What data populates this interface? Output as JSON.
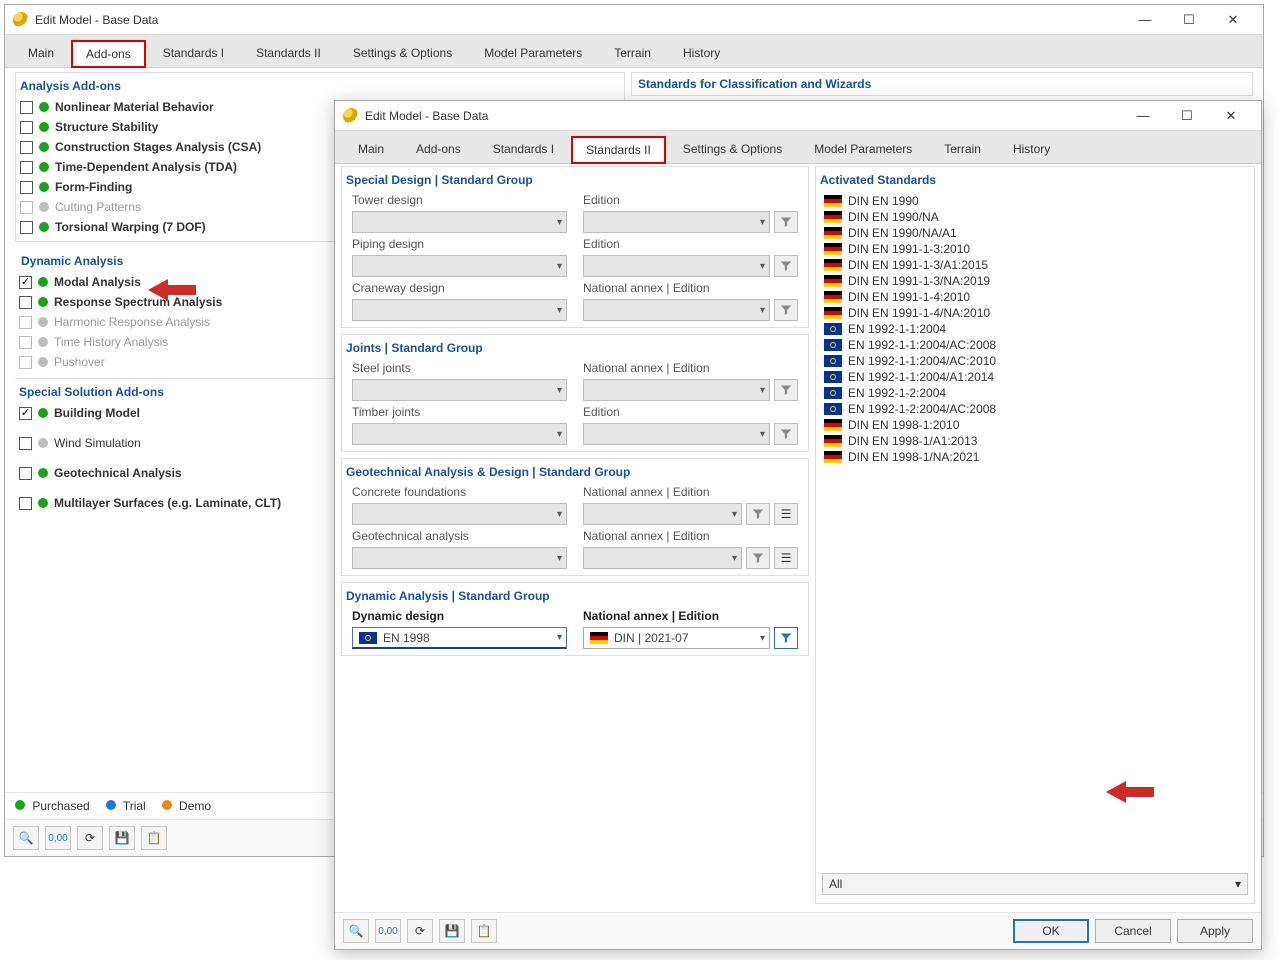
{
  "colors": {
    "purchased": "#19a319",
    "trial": "#1f77d4",
    "demo": "#e58a17",
    "disabledDot": "#bdbdbd",
    "arrow": "#cf2a2a"
  },
  "window1": {
    "title": "Edit Model - Base Data",
    "tabs": [
      "Main",
      "Add-ons",
      "Standards I",
      "Standards II",
      "Settings & Options",
      "Model Parameters",
      "Terrain",
      "History"
    ],
    "activeTab": 1,
    "sections": {
      "analysis": {
        "header": "Analysis Add-ons",
        "items": [
          {
            "checked": false,
            "dot": "purchased",
            "label": "Nonlinear Material Behavior",
            "bold": true
          },
          {
            "checked": false,
            "dot": "purchased",
            "label": "Structure Stability",
            "bold": true
          },
          {
            "checked": false,
            "dot": "purchased",
            "label": "Construction Stages Analysis (CSA)",
            "bold": true
          },
          {
            "checked": false,
            "dot": "purchased",
            "label": "Time-Dependent Analysis (TDA)",
            "bold": true
          },
          {
            "checked": false,
            "dot": "purchased",
            "label": "Form-Finding",
            "bold": true
          },
          {
            "checked": false,
            "dot": "disabled",
            "label": "Cutting Patterns",
            "bold": false,
            "disabled": true
          },
          {
            "checked": false,
            "dot": "purchased",
            "label": "Torsional Warping (7 DOF)",
            "bold": true
          }
        ]
      },
      "dynamic": {
        "header": "Dynamic Analysis",
        "items": [
          {
            "checked": true,
            "dot": "purchased",
            "label": "Modal Analysis",
            "bold": true
          },
          {
            "checked": false,
            "dot": "purchased",
            "label": "Response Spectrum Analysis",
            "bold": true
          },
          {
            "checked": false,
            "dot": "disabled",
            "label": "Harmonic Response Analysis",
            "bold": false,
            "disabled": true
          },
          {
            "checked": false,
            "dot": "disabled",
            "label": "Time History Analysis",
            "bold": false,
            "disabled": true
          },
          {
            "checked": false,
            "dot": "disabled",
            "label": "Pushover",
            "bold": false,
            "disabled": true
          }
        ]
      },
      "special": {
        "header": "Special Solution Add-ons",
        "items": [
          {
            "checked": true,
            "dot": "purchased",
            "label": "Building Model",
            "bold": true
          },
          {
            "checked": false,
            "dot": "disabled",
            "label": "Wind Simulation",
            "bold": false
          },
          {
            "checked": false,
            "dot": "purchased",
            "label": "Geotechnical Analysis",
            "bold": true
          },
          {
            "checked": false,
            "dot": "purchased",
            "label": "Multilayer Surfaces (e.g. Laminate, CLT)",
            "bold": true
          }
        ]
      }
    },
    "rightHeader": "Standards for Classification and Wizards",
    "legend": [
      {
        "dot": "purchased",
        "label": "Purchased"
      },
      {
        "dot": "trial",
        "label": "Trial"
      },
      {
        "dot": "demo",
        "label": "Demo"
      }
    ]
  },
  "window2": {
    "title": "Edit Model - Base Data",
    "tabs": [
      "Main",
      "Add-ons",
      "Standards I",
      "Standards II",
      "Settings & Options",
      "Model Parameters",
      "Terrain",
      "History"
    ],
    "activeTab": 3,
    "groups": [
      {
        "header": "Special Design | Standard Group",
        "rows": [
          {
            "l": "Tower design",
            "r": "Edition"
          },
          {
            "l": "Piping design",
            "r": "Edition"
          },
          {
            "l": "Craneway design",
            "r": "National annex | Edition"
          }
        ]
      },
      {
        "header": "Joints | Standard Group",
        "rows": [
          {
            "l": "Steel joints",
            "r": "National annex | Edition"
          },
          {
            "l": "Timber joints",
            "r": "Edition"
          }
        ]
      },
      {
        "header": "Geotechnical Analysis & Design | Standard Group",
        "rows": [
          {
            "l": "Concrete foundations",
            "r": "National annex | Edition",
            "extra": true
          },
          {
            "l": "Geotechnical analysis",
            "r": "National annex | Edition",
            "extra": true
          }
        ]
      },
      {
        "header": "Dynamic Analysis | Standard Group",
        "rows": [
          {
            "l": "Dynamic design",
            "lv": "EN 1998",
            "lflag": "eu",
            "r": "National annex | Edition",
            "rv": "DIN | 2021-07",
            "rflag": "de",
            "activeFilter": true,
            "activeCombos": true
          }
        ]
      }
    ],
    "activated": {
      "header": "Activated Standards",
      "items": [
        {
          "flag": "de",
          "text": "DIN EN 1990"
        },
        {
          "flag": "de",
          "text": "DIN EN 1990/NA"
        },
        {
          "flag": "de",
          "text": "DIN EN 1990/NA/A1"
        },
        {
          "flag": "de",
          "text": "DIN EN 1991-1-3:2010"
        },
        {
          "flag": "de",
          "text": "DIN EN 1991-1-3/A1:2015"
        },
        {
          "flag": "de",
          "text": "DIN EN 1991-1-3/NA:2019"
        },
        {
          "flag": "de",
          "text": "DIN EN 1991-1-4:2010"
        },
        {
          "flag": "de",
          "text": "DIN EN 1991-1-4/NA:2010"
        },
        {
          "flag": "eu",
          "text": "EN 1992-1-1:2004"
        },
        {
          "flag": "eu",
          "text": "EN 1992-1-1:2004/AC:2008"
        },
        {
          "flag": "eu",
          "text": "EN 1992-1-1:2004/AC:2010"
        },
        {
          "flag": "eu",
          "text": "EN 1992-1-1:2004/A1:2014"
        },
        {
          "flag": "eu",
          "text": "EN 1992-1-2:2004"
        },
        {
          "flag": "eu",
          "text": "EN 1992-1-2:2004/AC:2008"
        },
        {
          "flag": "de",
          "text": "DIN EN 1998-1:2010"
        },
        {
          "flag": "de",
          "text": "DIN EN 1998-1/A1:2013"
        },
        {
          "flag": "de",
          "text": "DIN EN 1998-1/NA:2021"
        }
      ],
      "filter": "All"
    },
    "buttons": {
      "ok": "OK",
      "cancel": "Cancel",
      "apply": "Apply"
    }
  }
}
